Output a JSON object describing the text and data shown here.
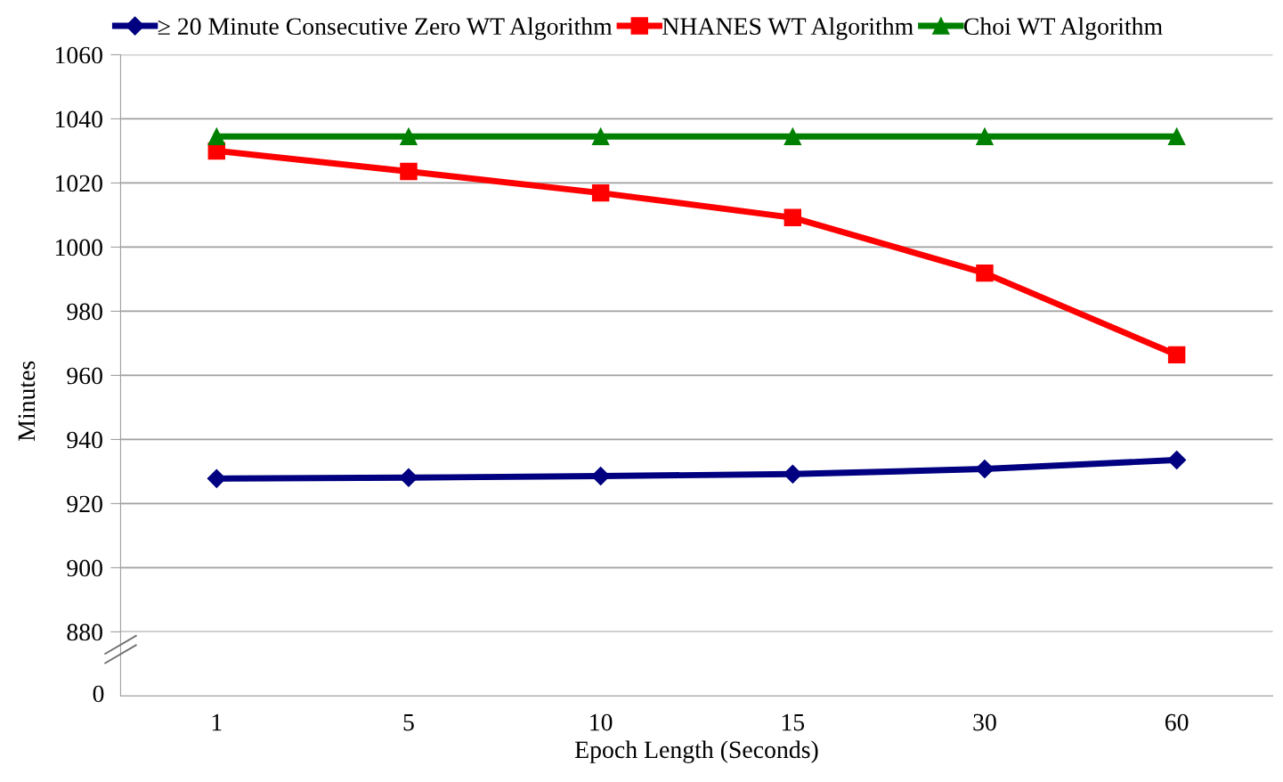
{
  "chart_data": {
    "type": "line",
    "xlabel": "Epoch Length (Seconds)",
    "ylabel": "Minutes",
    "categories": [
      "1",
      "5",
      "10",
      "15",
      "30",
      "60"
    ],
    "series": [
      {
        "name": "≥ 20 Minute Consecutive Zero WT Algorithm",
        "color": "#000080",
        "marker": "diamond",
        "values": [
          927.8,
          928.1,
          928.6,
          929.2,
          930.8,
          933.6
        ]
      },
      {
        "name": "NHANES WT Algorithm",
        "color": "#ff0000",
        "marker": "square",
        "values": [
          1030,
          1023.6,
          1016.9,
          1009.2,
          991.9,
          966.4
        ]
      },
      {
        "name": "Choi WT Algorithm",
        "color": "#008000",
        "marker": "triangle",
        "values": [
          1034.5,
          1034.5,
          1034.5,
          1034.5,
          1034.5,
          1034.5
        ]
      }
    ],
    "ylim": [
      880,
      1060
    ],
    "yticks": [
      880,
      900,
      920,
      940,
      960,
      980,
      1000,
      1020,
      1040,
      1060
    ],
    "annotations": [
      "0"
    ],
    "grid": "y",
    "legend": "top",
    "line_style": "solid"
  }
}
